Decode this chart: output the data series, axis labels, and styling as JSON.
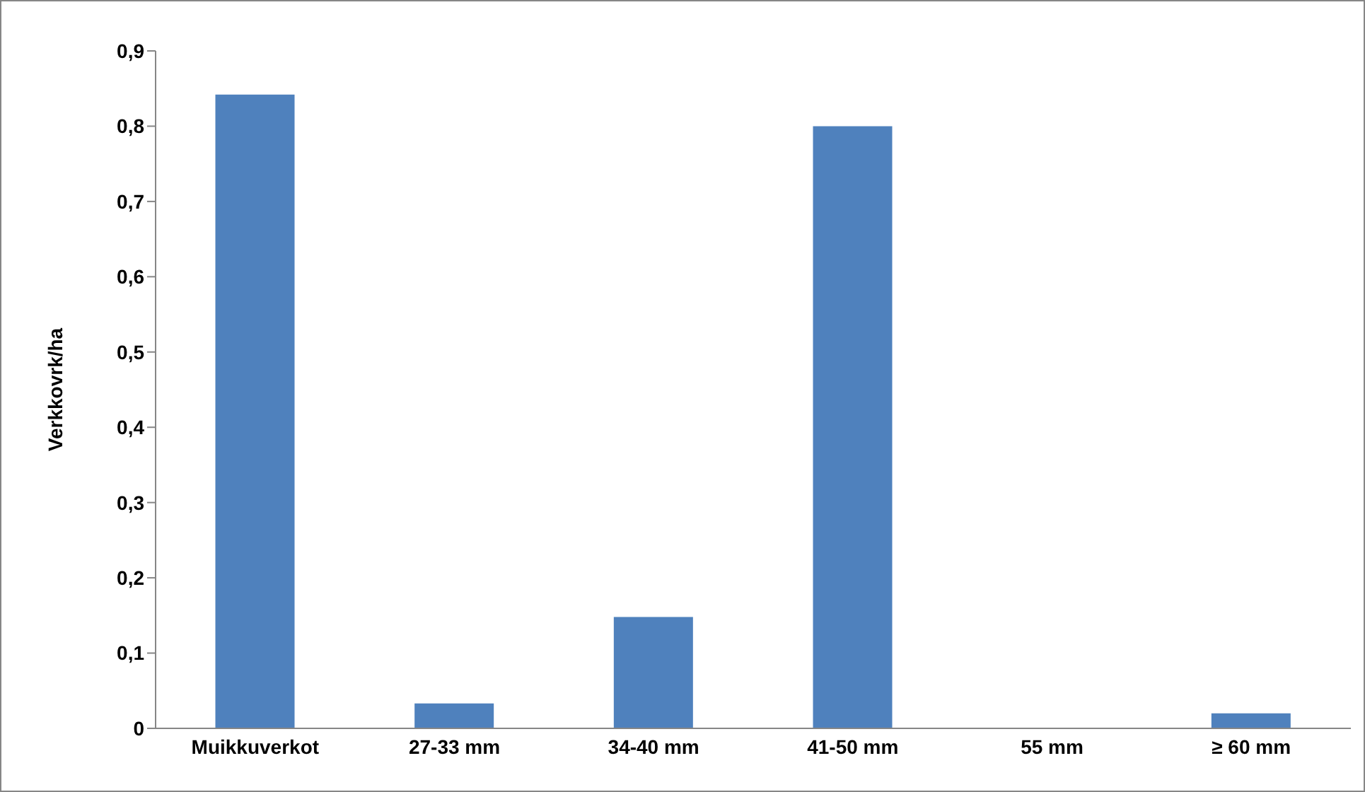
{
  "chart_data": {
    "type": "bar",
    "ylabel": "Verkkovrk/ha",
    "categories": [
      "Muikkuverkot",
      "27-33 mm",
      "34-40 mm",
      "41-50 mm",
      "55 mm",
      "≥ 60 mm"
    ],
    "values": [
      0.842,
      0.033,
      0.148,
      0.8,
      0,
      0.02
    ],
    "color": "#4f81bd",
    "ylim": [
      0,
      0.9
    ],
    "yticks": [
      {
        "value": 0,
        "label": "0"
      },
      {
        "value": 0.1,
        "label": "0,1"
      },
      {
        "value": 0.2,
        "label": "0,2"
      },
      {
        "value": 0.3,
        "label": "0,3"
      },
      {
        "value": 0.4,
        "label": "0,4"
      },
      {
        "value": 0.5,
        "label": "0,5"
      },
      {
        "value": 0.6,
        "label": "0,6"
      },
      {
        "value": 0.7,
        "label": "0,7"
      },
      {
        "value": 0.8,
        "label": "0,8"
      },
      {
        "value": 0.9,
        "label": "0,9"
      }
    ],
    "grid": false,
    "legend": false
  }
}
